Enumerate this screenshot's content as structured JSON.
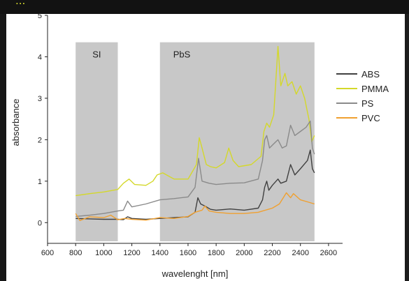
{
  "header": {
    "partial_caption": "..."
  },
  "chart_data": {
    "type": "line",
    "title": "",
    "xlabel": "wavelenght [nm]",
    "ylabel": "absorbance",
    "xlim": [
      600,
      2700
    ],
    "ylim": [
      -0.5,
      5
    ],
    "xticks": [
      600,
      800,
      1000,
      1200,
      1400,
      1600,
      1800,
      2000,
      2200,
      2400,
      2600
    ],
    "yticks": [
      0,
      1,
      2,
      3,
      4,
      5
    ],
    "grid": false,
    "legend_position": "right",
    "regions": [
      {
        "label": "SI",
        "x_start": 800,
        "x_end": 1100,
        "color": "#c8c8c8"
      },
      {
        "label": "PbS",
        "x_start": 1400,
        "x_end": 2500,
        "color": "#c8c8c8"
      }
    ],
    "series": [
      {
        "name": "ABS",
        "color": "#404040",
        "points": [
          [
            800,
            0.1
          ],
          [
            900,
            0.09
          ],
          [
            1000,
            0.08
          ],
          [
            1100,
            0.08
          ],
          [
            1140,
            0.07
          ],
          [
            1170,
            0.14
          ],
          [
            1200,
            0.1
          ],
          [
            1300,
            0.08
          ],
          [
            1400,
            0.1
          ],
          [
            1500,
            0.12
          ],
          [
            1600,
            0.14
          ],
          [
            1650,
            0.25
          ],
          [
            1670,
            0.6
          ],
          [
            1690,
            0.45
          ],
          [
            1720,
            0.4
          ],
          [
            1760,
            0.32
          ],
          [
            1800,
            0.3
          ],
          [
            1900,
            0.33
          ],
          [
            2000,
            0.3
          ],
          [
            2100,
            0.35
          ],
          [
            2130,
            0.55
          ],
          [
            2145,
            0.85
          ],
          [
            2160,
            1.0
          ],
          [
            2175,
            0.78
          ],
          [
            2200,
            0.9
          ],
          [
            2240,
            1.05
          ],
          [
            2260,
            0.95
          ],
          [
            2300,
            1.0
          ],
          [
            2330,
            1.4
          ],
          [
            2360,
            1.15
          ],
          [
            2400,
            1.3
          ],
          [
            2450,
            1.5
          ],
          [
            2470,
            1.75
          ],
          [
            2485,
            1.3
          ],
          [
            2500,
            1.2
          ]
        ]
      },
      {
        "name": "PMMA",
        "color": "#d4d82a",
        "points": [
          [
            800,
            0.65
          ],
          [
            900,
            0.7
          ],
          [
            1000,
            0.74
          ],
          [
            1100,
            0.8
          ],
          [
            1140,
            0.95
          ],
          [
            1180,
            1.05
          ],
          [
            1220,
            0.92
          ],
          [
            1300,
            0.9
          ],
          [
            1350,
            1.0
          ],
          [
            1380,
            1.15
          ],
          [
            1420,
            1.2
          ],
          [
            1500,
            1.05
          ],
          [
            1600,
            1.05
          ],
          [
            1660,
            1.4
          ],
          [
            1680,
            2.05
          ],
          [
            1700,
            1.8
          ],
          [
            1730,
            1.4
          ],
          [
            1760,
            1.35
          ],
          [
            1800,
            1.32
          ],
          [
            1860,
            1.45
          ],
          [
            1890,
            1.8
          ],
          [
            1920,
            1.5
          ],
          [
            1960,
            1.35
          ],
          [
            2050,
            1.4
          ],
          [
            2120,
            1.6
          ],
          [
            2140,
            2.2
          ],
          [
            2160,
            2.4
          ],
          [
            2180,
            2.3
          ],
          [
            2210,
            2.6
          ],
          [
            2240,
            4.25
          ],
          [
            2260,
            3.3
          ],
          [
            2290,
            3.6
          ],
          [
            2310,
            3.3
          ],
          [
            2340,
            3.4
          ],
          [
            2370,
            3.1
          ],
          [
            2400,
            3.3
          ],
          [
            2430,
            3.0
          ],
          [
            2460,
            2.5
          ],
          [
            2480,
            1.95
          ],
          [
            2500,
            2.1
          ]
        ]
      },
      {
        "name": "PS",
        "color": "#8a8a8a",
        "points": [
          [
            800,
            0.15
          ],
          [
            900,
            0.18
          ],
          [
            1000,
            0.22
          ],
          [
            1100,
            0.28
          ],
          [
            1140,
            0.3
          ],
          [
            1170,
            0.52
          ],
          [
            1200,
            0.38
          ],
          [
            1300,
            0.45
          ],
          [
            1400,
            0.55
          ],
          [
            1500,
            0.58
          ],
          [
            1600,
            0.62
          ],
          [
            1650,
            0.85
          ],
          [
            1675,
            1.55
          ],
          [
            1700,
            1.0
          ],
          [
            1750,
            0.95
          ],
          [
            1800,
            0.92
          ],
          [
            1900,
            0.95
          ],
          [
            2000,
            0.96
          ],
          [
            2100,
            1.05
          ],
          [
            2130,
            1.5
          ],
          [
            2145,
            2.0
          ],
          [
            2160,
            2.1
          ],
          [
            2180,
            1.8
          ],
          [
            2210,
            1.9
          ],
          [
            2240,
            2.0
          ],
          [
            2270,
            1.8
          ],
          [
            2300,
            1.85
          ],
          [
            2330,
            2.35
          ],
          [
            2360,
            2.1
          ],
          [
            2400,
            2.2
          ],
          [
            2440,
            2.3
          ],
          [
            2470,
            2.45
          ],
          [
            2485,
            1.8
          ],
          [
            2500,
            1.65
          ]
        ]
      },
      {
        "name": "PVC",
        "color": "#f0a030",
        "points": [
          [
            800,
            0.22
          ],
          [
            830,
            0.05
          ],
          [
            900,
            0.14
          ],
          [
            1000,
            0.12
          ],
          [
            1050,
            0.18
          ],
          [
            1100,
            0.07
          ],
          [
            1150,
            0.1
          ],
          [
            1200,
            0.08
          ],
          [
            1300,
            0.06
          ],
          [
            1400,
            0.12
          ],
          [
            1500,
            0.1
          ],
          [
            1600,
            0.15
          ],
          [
            1650,
            0.25
          ],
          [
            1700,
            0.3
          ],
          [
            1720,
            0.4
          ],
          [
            1750,
            0.28
          ],
          [
            1800,
            0.25
          ],
          [
            1900,
            0.22
          ],
          [
            2000,
            0.22
          ],
          [
            2100,
            0.25
          ],
          [
            2200,
            0.35
          ],
          [
            2250,
            0.45
          ],
          [
            2300,
            0.72
          ],
          [
            2330,
            0.6
          ],
          [
            2350,
            0.7
          ],
          [
            2400,
            0.55
          ],
          [
            2450,
            0.5
          ],
          [
            2500,
            0.45
          ]
        ]
      }
    ]
  }
}
